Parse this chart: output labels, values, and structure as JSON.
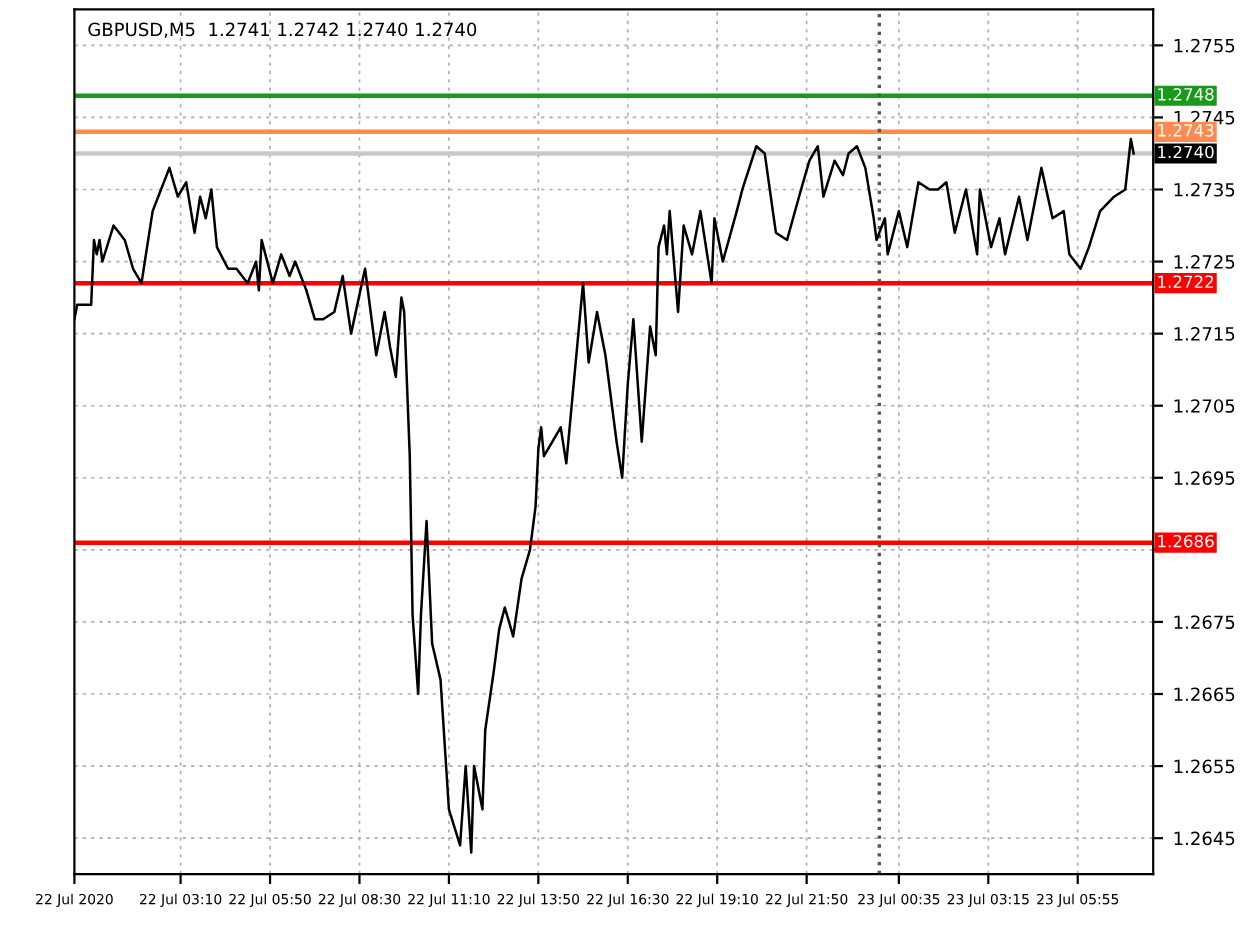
{
  "chart_data": {
    "type": "line",
    "title": "GBPUSD,M5  1.2741 1.2742 1.2740 1.2740",
    "series": [
      {
        "color": "#000000",
        "x": [
          "2020-07-22T00:00",
          "2020-07-22T00:05",
          "2020-07-22T00:30",
          "2020-07-22T00:35",
          "2020-07-22T00:40",
          "2020-07-22T00:45",
          "2020-07-22T00:50",
          "2020-07-22T01:10",
          "2020-07-22T01:30",
          "2020-07-22T01:45",
          "2020-07-22T02:00",
          "2020-07-22T02:20",
          "2020-07-22T02:35",
          "2020-07-22T02:50",
          "2020-07-22T03:05",
          "2020-07-22T03:20",
          "2020-07-22T03:35",
          "2020-07-22T03:45",
          "2020-07-22T03:55",
          "2020-07-22T04:05",
          "2020-07-22T04:15",
          "2020-07-22T04:35",
          "2020-07-22T04:50",
          "2020-07-22T05:10",
          "2020-07-22T05:25",
          "2020-07-22T05:30",
          "2020-07-22T05:35",
          "2020-07-22T05:55",
          "2020-07-22T06:10",
          "2020-07-22T06:25",
          "2020-07-22T06:35",
          "2020-07-22T06:55",
          "2020-07-22T07:10",
          "2020-07-22T07:25",
          "2020-07-22T07:45",
          "2020-07-22T08:00",
          "2020-07-22T08:15",
          "2020-07-22T08:40",
          "2020-07-22T09:00",
          "2020-07-22T09:15",
          "2020-07-22T09:25",
          "2020-07-22T09:35",
          "2020-07-22T09:45",
          "2020-07-22T09:50",
          "2020-07-22T10:00",
          "2020-07-22T10:05",
          "2020-07-22T10:15",
          "2020-07-22T10:20",
          "2020-07-22T10:30",
          "2020-07-22T10:40",
          "2020-07-22T10:55",
          "2020-07-22T11:10",
          "2020-07-22T11:30",
          "2020-07-22T11:40",
          "2020-07-22T11:50",
          "2020-07-22T11:55",
          "2020-07-22T12:10",
          "2020-07-22T12:15",
          "2020-07-22T12:30",
          "2020-07-22T12:40",
          "2020-07-22T12:50",
          "2020-07-22T13:05",
          "2020-07-22T13:20",
          "2020-07-22T13:35",
          "2020-07-22T13:45",
          "2020-07-22T13:50",
          "2020-07-22T13:55",
          "2020-07-22T14:00",
          "2020-07-22T14:30",
          "2020-07-22T14:40",
          "2020-07-22T15:10",
          "2020-07-22T15:20",
          "2020-07-22T15:35",
          "2020-07-22T15:50",
          "2020-07-22T16:10",
          "2020-07-22T16:20",
          "2020-07-22T16:30",
          "2020-07-22T16:40",
          "2020-07-22T16:55",
          "2020-07-22T17:10",
          "2020-07-22T17:20",
          "2020-07-22T17:25",
          "2020-07-22T17:35",
          "2020-07-22T17:40",
          "2020-07-22T17:45",
          "2020-07-22T18:00",
          "2020-07-22T18:10",
          "2020-07-22T18:25",
          "2020-07-22T18:40",
          "2020-07-22T19:00",
          "2020-07-22T19:05",
          "2020-07-22T19:20",
          "2020-07-22T19:45",
          "2020-07-22T19:55",
          "2020-07-22T20:20",
          "2020-07-22T20:35",
          "2020-07-22T20:55",
          "2020-07-22T21:15",
          "2020-07-22T21:40",
          "2020-07-22T21:55",
          "2020-07-22T22:10",
          "2020-07-22T22:20",
          "2020-07-22T22:40",
          "2020-07-22T22:55",
          "2020-07-22T23:05",
          "2020-07-22T23:20",
          "2020-07-22T23:35",
          "2020-07-22T23:50",
          "2020-07-22T23:55",
          "2020-07-23T00:10",
          "2020-07-23T00:15",
          "2020-07-23T00:35",
          "2020-07-23T00:50",
          "2020-07-23T01:10",
          "2020-07-23T01:30",
          "2020-07-23T01:45",
          "2020-07-23T02:00",
          "2020-07-23T02:15",
          "2020-07-23T02:35",
          "2020-07-23T02:55",
          "2020-07-23T03:00",
          "2020-07-23T03:20",
          "2020-07-23T03:35",
          "2020-07-23T03:45",
          "2020-07-23T04:10",
          "2020-07-23T04:25",
          "2020-07-23T04:40",
          "2020-07-23T04:50",
          "2020-07-23T05:10",
          "2020-07-23T05:30",
          "2020-07-23T05:40",
          "2020-07-23T06:00",
          "2020-07-23T06:15",
          "2020-07-23T06:35",
          "2020-07-23T07:00",
          "2020-07-23T07:20",
          "2020-07-23T07:30",
          "2020-07-23T07:35"
        ],
        "values": [
          1.2717,
          1.2719,
          1.2719,
          1.2728,
          1.2726,
          1.2728,
          1.2725,
          1.273,
          1.2728,
          1.2724,
          1.2722,
          1.2732,
          1.2735,
          1.2738,
          1.2734,
          1.2736,
          1.2729,
          1.2734,
          1.2731,
          1.2735,
          1.2727,
          1.2724,
          1.2724,
          1.2722,
          1.2725,
          1.2721,
          1.2728,
          1.2722,
          1.2726,
          1.2723,
          1.2725,
          1.2721,
          1.2717,
          1.2717,
          1.2718,
          1.2723,
          1.2715,
          1.2724,
          1.2712,
          1.2718,
          1.2713,
          1.2709,
          1.272,
          1.2718,
          1.2698,
          1.2676,
          1.2665,
          1.2676,
          1.2689,
          1.2672,
          1.2667,
          1.2649,
          1.2644,
          1.2655,
          1.2643,
          1.2655,
          1.2649,
          1.266,
          1.2668,
          1.2674,
          1.2677,
          1.2673,
          1.2681,
          1.2685,
          1.2691,
          1.2699,
          1.2702,
          1.2698,
          1.2702,
          1.2697,
          1.2722,
          1.2711,
          1.2718,
          1.2712,
          1.27,
          1.2695,
          1.2708,
          1.2717,
          1.27,
          1.2716,
          1.2712,
          1.2727,
          1.273,
          1.2726,
          1.2732,
          1.2718,
          1.273,
          1.2726,
          1.2732,
          1.2722,
          1.2731,
          1.2725,
          1.2732,
          1.2735,
          1.2741,
          1.274,
          1.2729,
          1.2728,
          1.2735,
          1.2739,
          1.2741,
          1.2734,
          1.2739,
          1.2737,
          1.274,
          1.2741,
          1.2738,
          1.2731,
          1.2728,
          1.2731,
          1.2726,
          1.2732,
          1.2727,
          1.2736,
          1.2735,
          1.2735,
          1.2736,
          1.2729,
          1.2735,
          1.2726,
          1.2735,
          1.2727,
          1.2731,
          1.2726,
          1.2734,
          1.2728,
          1.2734,
          1.2738,
          1.2731,
          1.2732,
          1.2726,
          1.2724,
          1.2727,
          1.2732,
          1.2734,
          1.2735,
          1.2742,
          1.274
        ]
      }
    ],
    "xlim": [
      "2020-07-22T00:00",
      "2020-07-23T08:10"
    ],
    "xticks": [
      {
        "value": "2020-07-22T00:00",
        "label": "22 Jul 2020"
      },
      {
        "value": "2020-07-22T03:10",
        "label": "22 Jul 03:10"
      },
      {
        "value": "2020-07-22T05:50",
        "label": "22 Jul 05:50"
      },
      {
        "value": "2020-07-22T08:30",
        "label": "22 Jul 08:30"
      },
      {
        "value": "2020-07-22T11:10",
        "label": "22 Jul 11:10"
      },
      {
        "value": "2020-07-22T13:50",
        "label": "22 Jul 13:50"
      },
      {
        "value": "2020-07-22T16:30",
        "label": "22 Jul 16:30"
      },
      {
        "value": "2020-07-22T19:10",
        "label": "22 Jul 19:10"
      },
      {
        "value": "2020-07-22T21:50",
        "label": "22 Jul 21:50"
      },
      {
        "value": "2020-07-23T00:35",
        "label": "23 Jul 00:35"
      },
      {
        "value": "2020-07-23T03:15",
        "label": "23 Jul 03:15"
      },
      {
        "value": "2020-07-23T05:55",
        "label": "23 Jul 05:55"
      }
    ],
    "ylim": [
      1.264,
      1.276
    ],
    "yticks": [
      {
        "value": 1.2755,
        "label": "1.2755"
      },
      {
        "value": 1.2745,
        "label": "1.2745"
      },
      {
        "value": 1.2735,
        "label": "1.2735"
      },
      {
        "value": 1.2725,
        "label": "1.2725"
      },
      {
        "value": 1.2715,
        "label": "1.2715"
      },
      {
        "value": 1.2705,
        "label": "1.2705"
      },
      {
        "value": 1.2695,
        "label": "1.2695"
      },
      {
        "value": 1.2685,
        "label": null
      },
      {
        "value": 1.2675,
        "label": "1.2675"
      },
      {
        "value": 1.2665,
        "label": "1.2665"
      },
      {
        "value": 1.2655,
        "label": "1.2655"
      },
      {
        "value": 1.2645,
        "label": "1.2645"
      }
    ],
    "ref_lines": [
      {
        "axis": "y",
        "value": 1.2748,
        "label": "1.2748",
        "color": "#1a9a1a"
      },
      {
        "axis": "y",
        "value": 1.2743,
        "label": "1.2743",
        "color": "#ff8a50"
      },
      {
        "axis": "y",
        "value": 1.274,
        "label": "1.2740",
        "color": "#c8c8c8"
      },
      {
        "axis": "y",
        "value": 1.2722,
        "label": "1.2722",
        "color": "#ff0000"
      },
      {
        "axis": "y",
        "value": 1.2686,
        "label": "1.2686",
        "color": "#ff0000"
      },
      {
        "axis": "x",
        "value": "2020-07-23T00:00",
        "color": "#555555",
        "line_style": "dotted"
      }
    ],
    "grid": true,
    "legend": false,
    "marker": "none",
    "line_style": "solid"
  }
}
